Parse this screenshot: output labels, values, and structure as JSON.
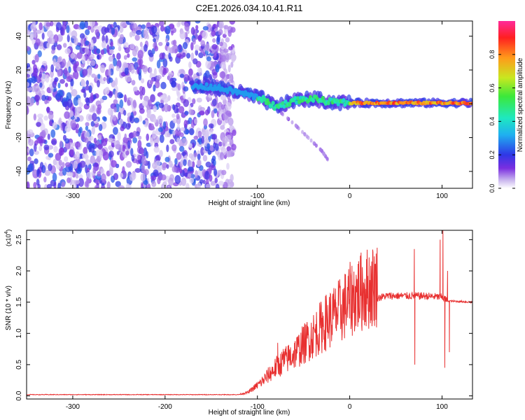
{
  "figure": {
    "title": "C2E1.2026.034.10.41.R11"
  },
  "chart_data": [
    {
      "type": "heatmap",
      "id": "spectrogram",
      "title": "",
      "xlabel": "Height of straight line (km)",
      "ylabel": "Frequency (Hz)",
      "xlim": [
        -350,
        133
      ],
      "ylim": [
        -50,
        49
      ],
      "x_ticks": [
        -300,
        -200,
        -100,
        0,
        100
      ],
      "y_ticks": [
        -40,
        -20,
        0,
        20,
        40
      ],
      "x_tick_labels": [
        "-300",
        "-200",
        "-100",
        "0",
        "100"
      ],
      "y_tick_labels": [
        "-40",
        "-20",
        "0",
        "20",
        "40"
      ],
      "colorbar": {
        "label": "Normalized spectral amplitude",
        "range": [
          0.0,
          1.0
        ],
        "ticks": [
          0.0,
          0.2,
          0.4,
          0.6,
          0.8
        ],
        "tick_labels": [
          "0.0",
          "0.2",
          "0.4",
          "0.6",
          "0.8"
        ],
        "colormap": [
          "#ffffff",
          "#c8b4ee",
          "#7a2fe0",
          "#2f37e6",
          "#1fb0f0",
          "#1ee8c0",
          "#3ce83a",
          "#c8e820",
          "#ff9a1a",
          "#ff2020",
          "#ff2a9a"
        ]
      },
      "features": [
        {
          "kind": "noise",
          "x_range": [
            -350,
            -140
          ],
          "f_range": [
            -50,
            49
          ],
          "amplitude": 0.25
        },
        {
          "kind": "sparse_noise",
          "x_range": [
            -140,
            -125
          ],
          "f_range": [
            -50,
            49
          ],
          "amplitude": 0.1
        },
        {
          "kind": "ridge",
          "points": [
            [
              -170,
              10
            ],
            [
              -150,
              10
            ],
            [
              -130,
              8
            ],
            [
              -115,
              6
            ],
            [
              -95,
              3
            ],
            [
              -80,
              -2
            ],
            [
              -60,
              2
            ],
            [
              -40,
              3
            ],
            [
              -20,
              1
            ],
            [
              0,
              0.5
            ],
            [
              30,
              0.5
            ],
            [
              80,
              0.5
            ],
            [
              133,
              0.5
            ]
          ]
        },
        {
          "kind": "drift",
          "points": [
            [
              -75,
              -5
            ],
            [
              -60,
              -12
            ],
            [
              -45,
              -20
            ],
            [
              -30,
              -28
            ],
            [
              -20,
              -36
            ]
          ]
        }
      ]
    },
    {
      "type": "line",
      "id": "snr",
      "title": "",
      "xlabel": "Height of straight line (km)",
      "ylabel": "SNR (10 * v/v)",
      "y_multiplier": "(x10^4)",
      "xlim": [
        -350,
        133
      ],
      "ylim": [
        -0.05,
        2.65
      ],
      "x_ticks": [
        -300,
        -200,
        -100,
        0,
        100
      ],
      "y_ticks": [
        0.0,
        0.5,
        1.0,
        1.5,
        2.0,
        2.5
      ],
      "x_tick_labels": [
        "-300",
        "-200",
        "-100",
        "0",
        "100"
      ],
      "y_tick_labels": [
        "0.0",
        "0.5",
        "1.0",
        "1.5",
        "2.0",
        "2.5"
      ],
      "color": "#e83030",
      "envelope": [
        [
          -350,
          0.02
        ],
        [
          -120,
          0.02
        ],
        [
          -110,
          0.05
        ],
        [
          -95,
          0.2
        ],
        [
          -80,
          0.4
        ],
        [
          -60,
          0.6
        ],
        [
          -40,
          0.85
        ],
        [
          -25,
          1.05
        ],
        [
          -10,
          1.2
        ],
        [
          0,
          1.35
        ],
        [
          10,
          1.45
        ],
        [
          25,
          1.55
        ],
        [
          40,
          1.6
        ],
        [
          60,
          1.6
        ],
        [
          80,
          1.6
        ],
        [
          100,
          1.58
        ],
        [
          106,
          1.52
        ],
        [
          133,
          1.5
        ]
      ],
      "spikes": [
        [
          -78,
          0.85
        ],
        [
          -72,
          0.75
        ],
        [
          -45,
          1.1
        ],
        [
          -30,
          1.25
        ],
        [
          -15,
          1.5
        ],
        [
          -5,
          1.55
        ],
        [
          70,
          2.35
        ],
        [
          70.5,
          0.5
        ],
        [
          98,
          2.5
        ],
        [
          101,
          2.65
        ],
        [
          103,
          0.45
        ],
        [
          106,
          2.0
        ],
        [
          108,
          0.7
        ]
      ]
    }
  ]
}
